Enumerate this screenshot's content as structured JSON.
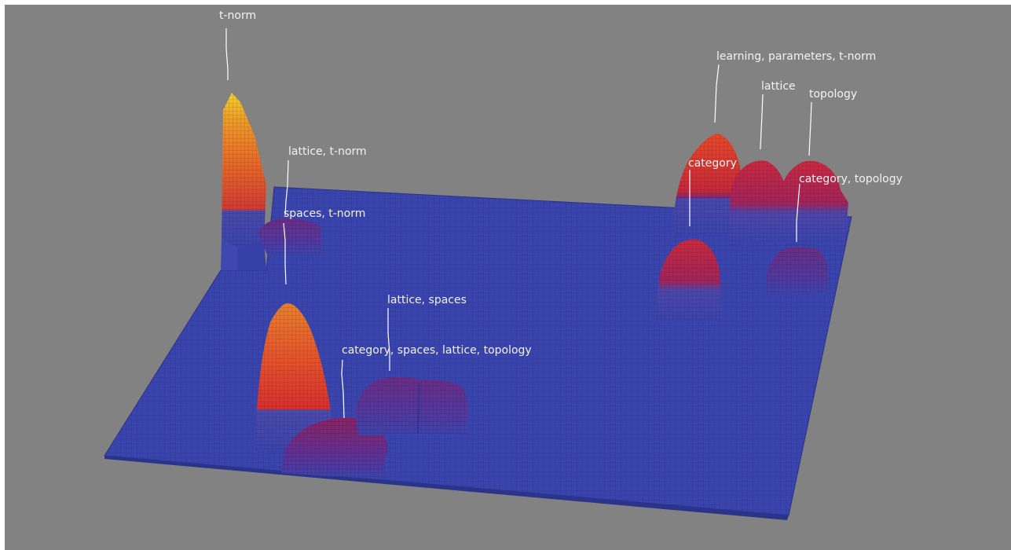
{
  "viewer": {
    "background_color": "#828282",
    "surface_base_color": "#3a44ad",
    "grid_line_color": "#2e3690",
    "leader_line_color": "#ffffff",
    "label_color": "#f2f2f2"
  },
  "labels": {
    "t_norm": "t-norm",
    "lattice_t_norm": "lattice, t-norm",
    "spaces_t_norm": "spaces, t-norm",
    "lattice_spaces": "lattice, spaces",
    "category_spaces_lattice_topology": "category, spaces, lattice, topology",
    "learning_parameters_t_norm": "learning, parameters, t-norm",
    "lattice": "lattice",
    "topology": "topology",
    "category": "category",
    "category_topology": "category, topology"
  }
}
